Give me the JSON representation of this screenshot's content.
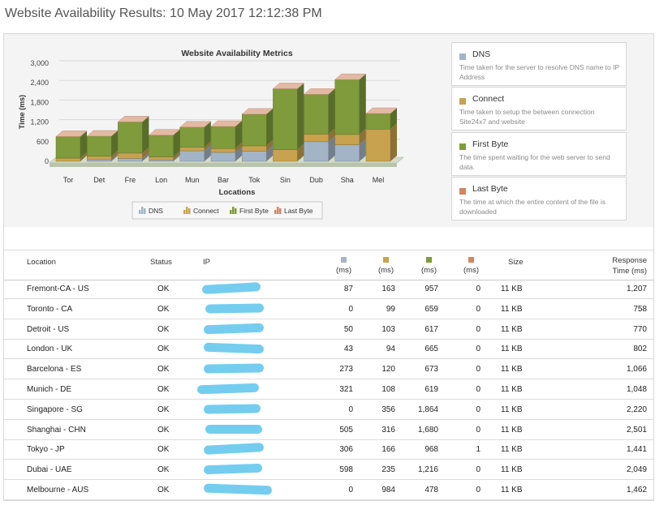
{
  "page_title": "Website Availability Results: 10 May 2017 12:12:38 PM",
  "colors": {
    "dns": "#a3b4c6",
    "connect": "#c8a24e",
    "first_byte": "#7f9b3c",
    "last_byte": "#d28463",
    "redaction": "#74cdef"
  },
  "chart_data": {
    "type": "bar",
    "stacked": true,
    "title": "Website Availability Metrics",
    "xlabel": "Locations",
    "ylabel": "Time (ms)",
    "ylim": [
      0,
      3000
    ],
    "yticks": [
      "0",
      "600",
      "1,200",
      "1,800",
      "2,400",
      "3,000"
    ],
    "categories": [
      "Tor",
      "Det",
      "Fre",
      "Lon",
      "Mun",
      "Bar",
      "Tok",
      "Sin",
      "Dub",
      "Sha",
      "Mel"
    ],
    "series": [
      {
        "name": "DNS",
        "values": [
          0,
          50,
          87,
          43,
          321,
          273,
          306,
          0,
          598,
          505,
          0
        ]
      },
      {
        "name": "Connect",
        "values": [
          99,
          103,
          163,
          94,
          108,
          120,
          166,
          356,
          235,
          316,
          984
        ]
      },
      {
        "name": "First Byte",
        "values": [
          659,
          617,
          957,
          665,
          619,
          673,
          968,
          1864,
          1216,
          1680,
          478
        ]
      },
      {
        "name": "Last Byte",
        "values": [
          0,
          0,
          0,
          0,
          0,
          0,
          1,
          0,
          0,
          0,
          0
        ]
      }
    ],
    "legend_labels": [
      "DNS",
      "Connect",
      "First Byte",
      "Last Byte"
    ],
    "legend_position": "bottom"
  },
  "legend_panel": [
    {
      "name": "DNS",
      "desc": "Time taken for the server to resolve DNS name to IP Address"
    },
    {
      "name": "Connect",
      "desc": "Time taken to setup the between connection Site24x7 and website"
    },
    {
      "name": "First Byte",
      "desc": "The time spent waiting for the web server to send data."
    },
    {
      "name": "Last Byte",
      "desc": "The time at which the entire content of the file is downloaded"
    }
  ],
  "table": {
    "headers": {
      "location": "Location",
      "status": "Status",
      "ip": "IP",
      "ms": "(ms)",
      "size": "Size",
      "response_line1": "Response",
      "response_line2": "Time (ms)"
    },
    "rows": [
      {
        "location": "Fremont-CA - US",
        "status": "OK",
        "dns": "87",
        "connect": "163",
        "first_byte": "957",
        "last_byte": "0",
        "size": "11 KB",
        "response": "1,207"
      },
      {
        "location": "Toronto - CA",
        "status": "OK",
        "dns": "0",
        "connect": "99",
        "first_byte": "659",
        "last_byte": "0",
        "size": "11 KB",
        "response": "758"
      },
      {
        "location": "Detroit - US",
        "status": "OK",
        "dns": "50",
        "connect": "103",
        "first_byte": "617",
        "last_byte": "0",
        "size": "11 KB",
        "response": "770"
      },
      {
        "location": "London - UK",
        "status": "OK",
        "dns": "43",
        "connect": "94",
        "first_byte": "665",
        "last_byte": "0",
        "size": "11 KB",
        "response": "802"
      },
      {
        "location": "Barcelona - ES",
        "status": "OK",
        "dns": "273",
        "connect": "120",
        "first_byte": "673",
        "last_byte": "0",
        "size": "11 KB",
        "response": "1,066"
      },
      {
        "location": "Munich - DE",
        "status": "OK",
        "dns": "321",
        "connect": "108",
        "first_byte": "619",
        "last_byte": "0",
        "size": "11 KB",
        "response": "1,048"
      },
      {
        "location": "Singapore - SG",
        "status": "OK",
        "dns": "0",
        "connect": "356",
        "first_byte": "1,864",
        "last_byte": "0",
        "size": "11 KB",
        "response": "2,220"
      },
      {
        "location": "Shanghai - CHN",
        "status": "OK",
        "dns": "505",
        "connect": "316",
        "first_byte": "1,680",
        "last_byte": "0",
        "size": "11 KB",
        "response": "2,501"
      },
      {
        "location": "Tokyo - JP",
        "status": "OK",
        "dns": "306",
        "connect": "166",
        "first_byte": "968",
        "last_byte": "1",
        "size": "11 KB",
        "response": "1,441"
      },
      {
        "location": "Dubai - UAE",
        "status": "OK",
        "dns": "598",
        "connect": "235",
        "first_byte": "1,216",
        "last_byte": "0",
        "size": "11 KB",
        "response": "2,049"
      },
      {
        "location": "Melbourne - AUS",
        "status": "OK",
        "dns": "0",
        "connect": "984",
        "first_byte": "478",
        "last_byte": "0",
        "size": "11 KB",
        "response": "1,462"
      }
    ]
  }
}
